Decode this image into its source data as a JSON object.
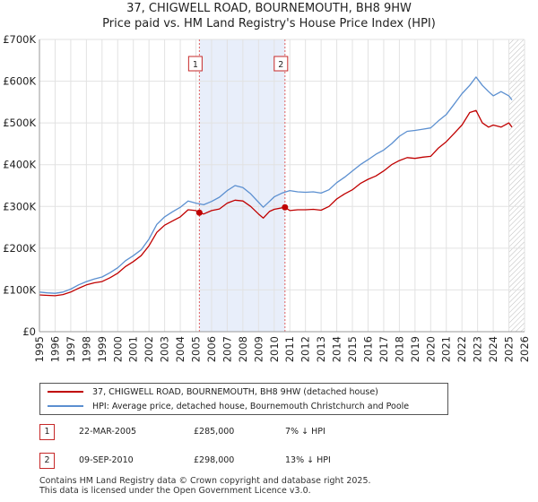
{
  "title_line1": "37, CHIGWELL ROAD, BOURNEMOUTH, BH8 9HW",
  "title_line2": "Price paid vs. HM Land Registry's House Price Index (HPI)",
  "colors": {
    "property": "#c00000",
    "hpi": "#5b8fd0",
    "shade": "#e8eefa",
    "marker_border": "#c62828"
  },
  "chart_data": {
    "type": "line",
    "xlim": [
      1995,
      2026
    ],
    "ylim": [
      0,
      700000
    ],
    "y_ticks": [
      0,
      100000,
      200000,
      300000,
      400000,
      500000,
      600000,
      700000
    ],
    "y_tick_labels": [
      "£0",
      "£100K",
      "£200K",
      "£300K",
      "£400K",
      "£500K",
      "£600K",
      "£700K"
    ],
    "x_ticks": [
      1995,
      1996,
      1997,
      1998,
      1999,
      2000,
      2001,
      2002,
      2003,
      2004,
      2005,
      2006,
      2007,
      2008,
      2009,
      2010,
      2011,
      2012,
      2013,
      2014,
      2015,
      2016,
      2017,
      2018,
      2019,
      2020,
      2021,
      2022,
      2023,
      2024,
      2025,
      2026
    ],
    "shaded_region": [
      2005.22,
      2010.69
    ],
    "hatched_from": 2025.0,
    "series": [
      {
        "name": "37, CHIGWELL ROAD, BOURNEMOUTH, BH8 9HW (detached house)",
        "x": [
          1995,
          1995.5,
          1996,
          1996.5,
          1997,
          1997.5,
          1998,
          1998.5,
          1999,
          1999.5,
          2000,
          2000.5,
          2001,
          2001.5,
          2002,
          2002.5,
          2003,
          2003.5,
          2004,
          2004.5,
          2005,
          2005.22,
          2005.5,
          2006,
          2006.5,
          2007,
          2007.5,
          2008,
          2008.5,
          2009,
          2009.3,
          2009.7,
          2010,
          2010.69,
          2011,
          2011.5,
          2012,
          2012.5,
          2013,
          2013.5,
          2014,
          2014.5,
          2015,
          2015.5,
          2016,
          2016.5,
          2017,
          2017.5,
          2018,
          2018.5,
          2019,
          2019.5,
          2020,
          2020.5,
          2021,
          2021.5,
          2022,
          2022.5,
          2022.9,
          2023.3,
          2023.7,
          2024,
          2024.5,
          2025,
          2025.2
        ],
        "values": [
          88000,
          87000,
          86000,
          89000,
          95000,
          104000,
          112000,
          117000,
          120000,
          129000,
          140000,
          156000,
          168000,
          182000,
          206000,
          238000,
          255000,
          265000,
          275000,
          292000,
          290000,
          285000,
          282000,
          290000,
          294000,
          308000,
          315000,
          313000,
          300000,
          282000,
          272000,
          288000,
          293000,
          298000,
          290000,
          292000,
          292000,
          293000,
          291000,
          300000,
          318000,
          330000,
          340000,
          355000,
          365000,
          373000,
          385000,
          400000,
          410000,
          417000,
          415000,
          418000,
          420000,
          440000,
          455000,
          475000,
          495000,
          525000,
          530000,
          500000,
          490000,
          495000,
          490000,
          500000,
          490000
        ]
      },
      {
        "name": "HPI: Average price, detached house, Bournemouth Christchurch and Poole",
        "x": [
          1995,
          1995.5,
          1996,
          1996.5,
          1997,
          1997.5,
          1998,
          1998.5,
          1999,
          1999.5,
          2000,
          2000.5,
          2001,
          2001.5,
          2002,
          2002.5,
          2003,
          2003.5,
          2004,
          2004.5,
          2005,
          2005.5,
          2006,
          2006.5,
          2007,
          2007.5,
          2008,
          2008.5,
          2009,
          2009.3,
          2009.7,
          2010,
          2010.5,
          2011,
          2011.5,
          2012,
          2012.5,
          2013,
          2013.5,
          2014,
          2014.5,
          2015,
          2015.5,
          2016,
          2016.5,
          2017,
          2017.5,
          2018,
          2018.5,
          2019,
          2019.5,
          2020,
          2020.5,
          2021,
          2021.5,
          2022,
          2022.5,
          2022.9,
          2023.3,
          2023.7,
          2024,
          2024.5,
          2025,
          2025.2
        ],
        "values": [
          95000,
          93000,
          92000,
          95000,
          102000,
          112000,
          120000,
          126000,
          131000,
          141000,
          153000,
          170000,
          182000,
          196000,
          222000,
          257000,
          275000,
          287000,
          298000,
          313000,
          308000,
          304000,
          312000,
          322000,
          338000,
          350000,
          345000,
          330000,
          310000,
          298000,
          312000,
          323000,
          332000,
          338000,
          335000,
          334000,
          335000,
          332000,
          340000,
          357000,
          370000,
          385000,
          400000,
          412000,
          425000,
          435000,
          450000,
          468000,
          480000,
          482000,
          485000,
          488000,
          505000,
          520000,
          545000,
          570000,
          590000,
          610000,
          590000,
          575000,
          565000,
          575000,
          565000,
          555000
        ]
      }
    ],
    "markers": [
      {
        "label": "1",
        "x": 2005.22,
        "y": 285000
      },
      {
        "label": "2",
        "x": 2010.69,
        "y": 298000
      }
    ]
  },
  "legend": {
    "property": "37, CHIGWELL ROAD, BOURNEMOUTH, BH8 9HW (detached house)",
    "hpi": "HPI: Average price, detached house, Bournemouth Christchurch and Poole"
  },
  "transactions": [
    {
      "num": "1",
      "date": "22-MAR-2005",
      "price": "£285,000",
      "delta": "7% ↓ HPI"
    },
    {
      "num": "2",
      "date": "09-SEP-2010",
      "price": "£298,000",
      "delta": "13% ↓ HPI"
    }
  ],
  "footer": {
    "line1": "Contains HM Land Registry data © Crown copyright and database right 2025.",
    "line2": "This data is licensed under the Open Government Licence v3.0."
  }
}
